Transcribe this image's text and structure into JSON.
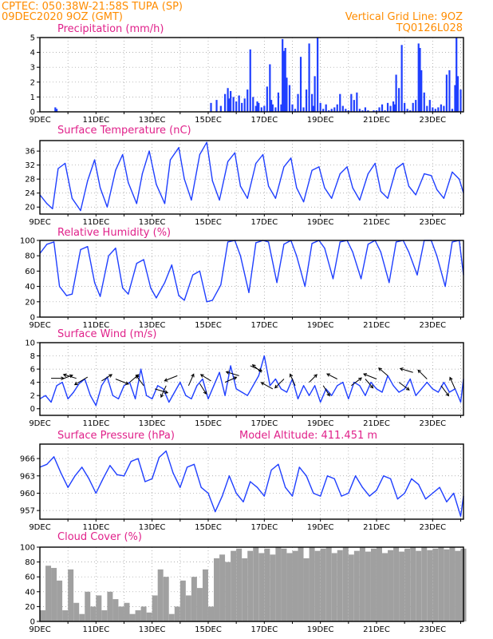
{
  "header": {
    "line1": "CPTEC:  050:38W-21:58S  TUPA (SP)",
    "line2": "09DEC2020 9OZ (GMT)",
    "grid_note": "Vertical Grid Line: 9OZ",
    "code": "TQ0126L028"
  },
  "colors": {
    "header": "#ff8c00",
    "title": "#e0218a",
    "series": "#1f3fff",
    "cloud": "#a0a0a0",
    "frame": "#000000",
    "grid": "#999999"
  },
  "chart_data": [
    {
      "type": "bar",
      "title": "Precipitation (mm/h)",
      "ylim": [
        0,
        5
      ],
      "yticks": [
        "0",
        "1",
        "2",
        "3",
        "4",
        "5"
      ],
      "xticks": [
        "9DEC",
        "11DEC",
        "13DEC",
        "15DEC",
        "17DEC",
        "19DEC",
        "21DEC",
        "23DEC"
      ],
      "xtick_day": [
        9,
        11,
        13,
        15,
        17,
        19,
        21,
        23
      ],
      "xlim_days": [
        9,
        24.1
      ],
      "grid": true,
      "x_day": [
        9.55,
        9.6,
        15.1,
        15.3,
        15.45,
        15.6,
        15.7,
        15.75,
        15.8,
        15.9,
        16.0,
        16.1,
        16.2,
        16.3,
        16.4,
        16.5,
        16.6,
        16.7,
        16.75,
        16.8,
        16.9,
        17.0,
        17.1,
        17.2,
        17.25,
        17.3,
        17.4,
        17.5,
        17.6,
        17.65,
        17.7,
        17.75,
        17.8,
        17.9,
        18.0,
        18.1,
        18.2,
        18.3,
        18.4,
        18.5,
        18.6,
        18.7,
        18.75,
        18.8,
        18.9,
        19.0,
        19.1,
        19.2,
        19.3,
        19.4,
        19.5,
        19.6,
        19.7,
        19.8,
        19.9,
        20.0,
        20.1,
        20.2,
        20.3,
        20.4,
        20.5,
        20.6,
        20.7,
        20.8,
        20.9,
        21.0,
        21.1,
        21.2,
        21.3,
        21.4,
        21.5,
        21.6,
        21.65,
        21.7,
        21.8,
        21.9,
        22.0,
        22.1,
        22.2,
        22.3,
        22.4,
        22.5,
        22.55,
        22.6,
        22.7,
        22.8,
        22.9,
        23.0,
        23.1,
        23.2,
        23.3,
        23.4,
        23.5,
        23.6,
        23.7,
        23.8,
        23.85,
        23.9,
        24.0
      ],
      "values": [
        0.3,
        0.2,
        0.6,
        0.8,
        0.4,
        1.2,
        1.6,
        0.9,
        1.4,
        1.0,
        0.7,
        1.1,
        0.6,
        0.9,
        1.5,
        4.2,
        1.0,
        0.4,
        0.7,
        0.6,
        0.3,
        0.4,
        1.7,
        3.2,
        0.8,
        0.5,
        0.3,
        1.3,
        0.5,
        4.9,
        4.1,
        4.3,
        2.3,
        1.8,
        0.5,
        0.2,
        1.2,
        3.7,
        0.3,
        1.5,
        4.6,
        1.2,
        0.4,
        2.4,
        5.0,
        0.6,
        0.2,
        0.5,
        0.1,
        0.2,
        0.3,
        0.5,
        1.2,
        0.4,
        0.2,
        0.1,
        1.2,
        0.8,
        1.3,
        0.2,
        0.1,
        0.3,
        0.1,
        0.0,
        0.1,
        0.1,
        0.3,
        0.5,
        0.1,
        0.6,
        0.4,
        0.7,
        0.5,
        2.5,
        1.6,
        4.5,
        0.6,
        0.2,
        0.1,
        0.6,
        0.8,
        4.6,
        4.3,
        2.8,
        1.3,
        0.4,
        0.8,
        0.3,
        0.2,
        0.3,
        0.5,
        0.4,
        2.5,
        2.8,
        0.2,
        1.8,
        5.0,
        2.4,
        1.5
      ]
    },
    {
      "type": "line",
      "title": "Surface Temperature (nC)",
      "ylim": [
        18,
        39
      ],
      "yticks": [
        "20",
        "24",
        "28",
        "32",
        "36"
      ],
      "ytick_values": [
        20,
        24,
        28,
        32,
        36
      ],
      "xticks": [
        "9DEC",
        "11DEC",
        "13DEC",
        "15DEC",
        "17DEC",
        "19DEC",
        "21DEC",
        "23DEC"
      ],
      "grid": true,
      "x_day": [
        9.0,
        9.25,
        9.45,
        9.65,
        9.9,
        10.15,
        10.45,
        10.7,
        10.95,
        11.15,
        11.4,
        11.7,
        11.95,
        12.15,
        12.45,
        12.65,
        12.9,
        13.15,
        13.45,
        13.65,
        13.95,
        14.15,
        14.4,
        14.7,
        14.95,
        15.15,
        15.4,
        15.7,
        15.95,
        16.15,
        16.4,
        16.7,
        16.95,
        17.15,
        17.4,
        17.7,
        17.95,
        18.15,
        18.4,
        18.7,
        18.95,
        19.15,
        19.4,
        19.7,
        19.95,
        20.15,
        20.4,
        20.7,
        20.95,
        21.15,
        21.4,
        21.7,
        21.95,
        22.15,
        22.4,
        22.7,
        22.95,
        23.15,
        23.4,
        23.7,
        23.95,
        24.1
      ],
      "values": [
        23.5,
        21.0,
        19.5,
        31.0,
        32.5,
        22.5,
        19.0,
        27.5,
        33.5,
        25.5,
        20.0,
        30.5,
        35.0,
        27.0,
        21.0,
        29.5,
        36.0,
        26.5,
        21.0,
        33.5,
        37.0,
        28.0,
        22.0,
        35.0,
        38.5,
        27.5,
        22.0,
        33.0,
        35.5,
        26.0,
        22.5,
        32.5,
        35.0,
        26.0,
        22.5,
        31.5,
        34.0,
        25.5,
        21.5,
        30.5,
        31.5,
        25.5,
        22.5,
        29.5,
        31.5,
        25.5,
        22.0,
        29.5,
        32.5,
        24.5,
        22.5,
        31.0,
        32.5,
        26.0,
        23.5,
        29.5,
        29.0,
        25.0,
        22.5,
        30.0,
        28.0,
        24.0
      ]
    },
    {
      "type": "line",
      "title": "Relative Humidity (%)",
      "ylim": [
        0,
        100
      ],
      "yticks": [
        "0",
        "20",
        "40",
        "60",
        "80",
        "100"
      ],
      "ytick_values": [
        0,
        20,
        40,
        60,
        80,
        100
      ],
      "xticks": [
        "9DEC",
        "11DEC",
        "13DEC",
        "15DEC",
        "17DEC",
        "19DEC",
        "21DEC",
        "23DEC"
      ],
      "grid": true,
      "x_day": [
        9.0,
        9.25,
        9.5,
        9.7,
        9.95,
        10.15,
        10.45,
        10.7,
        10.95,
        11.15,
        11.45,
        11.7,
        11.95,
        12.15,
        12.45,
        12.7,
        12.95,
        13.15,
        13.45,
        13.7,
        13.95,
        14.15,
        14.45,
        14.7,
        14.95,
        15.15,
        15.45,
        15.7,
        15.95,
        16.15,
        16.45,
        16.7,
        16.95,
        17.15,
        17.45,
        17.7,
        17.95,
        18.15,
        18.45,
        18.7,
        18.95,
        19.15,
        19.45,
        19.7,
        19.95,
        20.15,
        20.45,
        20.7,
        20.95,
        21.15,
        21.45,
        21.7,
        21.95,
        22.15,
        22.45,
        22.7,
        22.95,
        23.15,
        23.45,
        23.7,
        23.95,
        24.1
      ],
      "values": [
        83,
        95,
        98,
        40,
        28,
        30,
        88,
        92,
        45,
        27,
        80,
        90,
        38,
        30,
        70,
        75,
        38,
        25,
        45,
        68,
        28,
        22,
        55,
        60,
        20,
        22,
        42,
        98,
        100,
        80,
        32,
        97,
        100,
        98,
        45,
        95,
        100,
        80,
        40,
        96,
        100,
        90,
        50,
        98,
        100,
        85,
        50,
        95,
        100,
        85,
        45,
        98,
        100,
        85,
        55,
        100,
        100,
        80,
        40,
        98,
        100,
        55
      ]
    },
    {
      "type": "line",
      "title": "Surface Wind (m/s)",
      "ylim": [
        -1,
        10
      ],
      "yticks": [
        "0",
        "2",
        "4",
        "6",
        "8",
        "10"
      ],
      "ytick_values": [
        0,
        2,
        4,
        6,
        8,
        10
      ],
      "xticks": [
        "9DEC",
        "11DEC",
        "13DEC",
        "15DEC",
        "17DEC",
        "19DEC",
        "21DEC",
        "23DEC"
      ],
      "grid": true,
      "x_day": [
        9.0,
        9.2,
        9.4,
        9.6,
        9.8,
        10.0,
        10.2,
        10.4,
        10.6,
        10.8,
        11.0,
        11.2,
        11.4,
        11.6,
        11.8,
        12.0,
        12.2,
        12.4,
        12.6,
        12.8,
        13.0,
        13.2,
        13.4,
        13.6,
        13.8,
        14.0,
        14.2,
        14.4,
        14.6,
        14.8,
        15.0,
        15.2,
        15.4,
        15.6,
        15.8,
        16.0,
        16.2,
        16.4,
        16.6,
        16.8,
        17.0,
        17.2,
        17.4,
        17.6,
        17.8,
        18.0,
        18.2,
        18.4,
        18.6,
        18.8,
        19.0,
        19.2,
        19.4,
        19.6,
        19.8,
        20.0,
        20.2,
        20.4,
        20.6,
        20.8,
        21.0,
        21.2,
        21.4,
        21.6,
        21.8,
        22.0,
        22.2,
        22.4,
        22.6,
        22.8,
        23.0,
        23.2,
        23.4,
        23.6,
        23.8,
        24.0,
        24.1
      ],
      "values": [
        1.5,
        2.0,
        1.0,
        3.5,
        4.0,
        1.5,
        2.5,
        3.8,
        4.5,
        2.0,
        0.5,
        3.5,
        4.8,
        2.0,
        1.5,
        3.5,
        4.0,
        1.5,
        6.0,
        2.0,
        1.5,
        3.5,
        3.0,
        1.0,
        2.5,
        4.0,
        2.0,
        1.5,
        3.5,
        4.5,
        1.5,
        3.5,
        5.5,
        2.0,
        6.5,
        3.0,
        2.5,
        2.0,
        3.5,
        5.0,
        8.0,
        3.5,
        4.5,
        3.0,
        2.5,
        4.5,
        1.5,
        3.5,
        2.0,
        3.5,
        1.0,
        3.0,
        2.0,
        3.5,
        4.0,
        1.5,
        4.0,
        3.5,
        2.0,
        4.0,
        3.0,
        2.5,
        5.0,
        3.5,
        2.5,
        3.0,
        4.5,
        2.0,
        3.0,
        4.0,
        3.0,
        2.5,
        4.0,
        2.5,
        3.0,
        1.0,
        4.5
      ],
      "arrows": {
        "x_day": [
          9.4,
          9.8,
          10.3,
          10.7,
          11.2,
          11.7,
          12.2,
          12.7,
          13.1,
          13.5,
          13.9,
          14.3,
          14.7,
          15.1,
          15.6,
          16.1,
          16.5,
          16.9,
          17.3,
          17.7,
          18.1,
          18.6,
          19.1,
          19.6,
          20.1,
          20.6,
          21.0,
          21.4,
          21.8,
          22.3,
          22.8,
          23.3,
          23.8
        ],
        "y": [
          4.6,
          4.5,
          4.6,
          4.8,
          4.2,
          4.5,
          4.0,
          3.5,
          3.0,
          3.5,
          5.0,
          3.5,
          3.8,
          4.2,
          4.0,
          5.0,
          6.5,
          5.5,
          3.0,
          4.5,
          3.5,
          4.0,
          3.5,
          4.5,
          3.5,
          4.5,
          4.5,
          5.0,
          4.0,
          5.5,
          4.5,
          3.5,
          3.0
        ],
        "u": [
          1,
          0.8,
          -1,
          -1,
          0.8,
          1,
          0.7,
          -0.6,
          1,
          -0.4,
          -1,
          0.4,
          0.5,
          -0.8,
          0.9,
          -1,
          0.9,
          -0.7,
          -0.9,
          -0.7,
          -0.4,
          0.6,
          0.5,
          -0.8,
          0.8,
          0.6,
          -1,
          -0.7,
          0.8,
          -1,
          -0.7,
          0.6,
          -0.4
        ],
        "v": [
          0,
          0.3,
          0.3,
          -0.6,
          0.5,
          -0.4,
          0.6,
          0.8,
          -0.3,
          -0.9,
          -0.4,
          0.9,
          -0.8,
          0.5,
          0.4,
          0.3,
          -0.4,
          0.6,
          0.5,
          -0.7,
          0.9,
          0.6,
          -0.8,
          0.4,
          0.6,
          -0.7,
          0.4,
          0.6,
          -0.6,
          0.3,
          0.7,
          -0.8,
          0.9
        ]
      }
    },
    {
      "type": "line",
      "title": "Surface Pressure (hPa)",
      "subtitle": "Model Altitude: 411.451 m",
      "ylim": [
        955.5,
        968.5
      ],
      "yticks": [
        "957",
        "960",
        "963",
        "966"
      ],
      "ytick_values": [
        957,
        960,
        963,
        966
      ],
      "xticks": [
        "9DEC",
        "11DEC",
        "13DEC",
        "15DEC",
        "17DEC",
        "19DEC",
        "21DEC",
        "23DEC"
      ],
      "grid": true,
      "x_day": [
        9.0,
        9.25,
        9.5,
        9.75,
        10.0,
        10.25,
        10.5,
        10.75,
        11.0,
        11.25,
        11.5,
        11.75,
        12.0,
        12.25,
        12.5,
        12.75,
        13.0,
        13.25,
        13.5,
        13.75,
        14.0,
        14.25,
        14.5,
        14.75,
        15.0,
        15.25,
        15.5,
        15.75,
        16.0,
        16.25,
        16.5,
        16.75,
        17.0,
        17.25,
        17.5,
        17.75,
        18.0,
        18.25,
        18.5,
        18.75,
        19.0,
        19.25,
        19.5,
        19.75,
        20.0,
        20.25,
        20.5,
        20.75,
        21.0,
        21.25,
        21.5,
        21.75,
        22.0,
        22.25,
        22.5,
        22.75,
        23.0,
        23.25,
        23.5,
        23.75,
        24.0,
        24.1
      ],
      "values": [
        964.5,
        965.0,
        966.3,
        963.5,
        961.0,
        963.0,
        964.5,
        962.5,
        960.0,
        962.5,
        964.8,
        963.2,
        963.0,
        965.5,
        966.0,
        962.0,
        962.5,
        966.2,
        967.3,
        963.5,
        961.0,
        964.5,
        965.0,
        961.0,
        960.0,
        956.8,
        959.5,
        963.0,
        960.0,
        958.5,
        962.0,
        961.0,
        959.5,
        964.0,
        965.0,
        961.0,
        959.5,
        964.5,
        963.0,
        960.0,
        959.5,
        963.0,
        962.5,
        959.5,
        960.0,
        963.0,
        961.0,
        959.5,
        960.5,
        963.0,
        962.5,
        959.0,
        960.0,
        962.5,
        961.5,
        959.0,
        960.0,
        961.0,
        958.5,
        960.0,
        956.0,
        959.5
      ]
    },
    {
      "type": "bar",
      "title": "Cloud Cover (%)",
      "ylim": [
        0,
        100
      ],
      "yticks": [
        "0",
        "20",
        "40",
        "60",
        "80",
        "100"
      ],
      "ytick_values": [
        0,
        20,
        40,
        60,
        80,
        100
      ],
      "xticks": [
        "9DEC",
        "11DEC",
        "13DEC",
        "15DEC",
        "17DEC",
        "19DEC",
        "21DEC",
        "23DEC"
      ],
      "grid": true,
      "x_day": [
        9.0,
        9.2,
        9.4,
        9.6,
        9.8,
        10.0,
        10.2,
        10.4,
        10.6,
        10.8,
        11.0,
        11.2,
        11.4,
        11.6,
        11.8,
        12.0,
        12.2,
        12.4,
        12.6,
        12.8,
        13.0,
        13.2,
        13.4,
        13.6,
        13.8,
        14.0,
        14.2,
        14.4,
        14.6,
        14.8,
        15.0,
        15.2,
        15.4,
        15.6,
        15.8,
        16.0,
        16.2,
        16.4,
        16.6,
        16.8,
        17.0,
        17.2,
        17.4,
        17.6,
        17.8,
        18.0,
        18.2,
        18.4,
        18.6,
        18.8,
        19.0,
        19.2,
        19.4,
        19.6,
        19.8,
        20.0,
        20.2,
        20.4,
        20.6,
        20.8,
        21.0,
        21.2,
        21.4,
        21.6,
        21.8,
        22.0,
        22.2,
        22.4,
        22.6,
        22.8,
        23.0,
        23.2,
        23.4,
        23.6,
        23.8,
        24.0
      ],
      "values": [
        15,
        75,
        72,
        55,
        15,
        70,
        25,
        10,
        40,
        20,
        35,
        15,
        40,
        30,
        20,
        25,
        10,
        15,
        20,
        12,
        35,
        70,
        60,
        10,
        20,
        55,
        35,
        60,
        45,
        70,
        20,
        85,
        90,
        80,
        95,
        98,
        85,
        95,
        100,
        92,
        98,
        90,
        100,
        98,
        92,
        95,
        100,
        85,
        100,
        95,
        98,
        100,
        92,
        96,
        100,
        90,
        95,
        100,
        94,
        98,
        100,
        92,
        96,
        100,
        94,
        98,
        100,
        95,
        100,
        96,
        98,
        100,
        97,
        100,
        95,
        98
      ]
    }
  ]
}
